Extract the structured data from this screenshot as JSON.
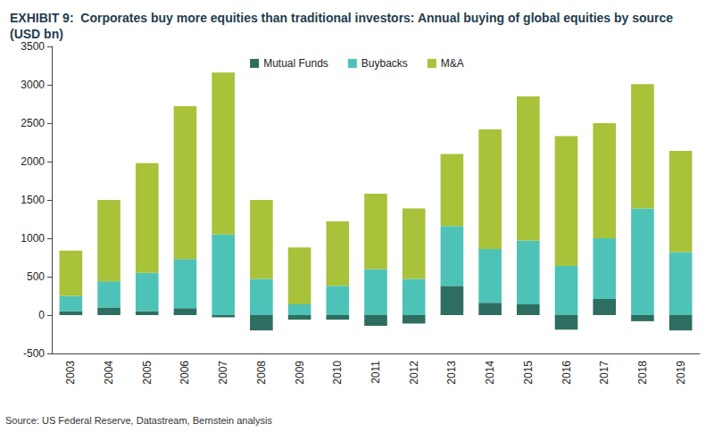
{
  "chart_data": {
    "type": "bar",
    "title": "EXHIBIT 9:  Corporates buy more equities than traditional investors: Annual buying of global equities by source (USD bn)",
    "annotations": [
      "Source: US Federal Reserve, Datastream, Bernstein analysis"
    ],
    "categories": [
      "2003",
      "2004",
      "2005",
      "2006",
      "2007",
      "2008",
      "2009",
      "2010",
      "2011",
      "2012",
      "2013",
      "2014",
      "2015",
      "2016",
      "2017",
      "2018",
      "2019"
    ],
    "series": [
      {
        "name": "Mutual Funds",
        "color": "#2d6e60",
        "values": [
          50,
          100,
          50,
          90,
          -30,
          -200,
          -60,
          -60,
          -140,
          -110,
          380,
          160,
          140,
          -190,
          210,
          -80,
          -200
        ]
      },
      {
        "name": "Buybacks",
        "color": "#4dc3b8",
        "values": [
          200,
          340,
          500,
          640,
          1050,
          470,
          140,
          380,
          600,
          470,
          780,
          700,
          830,
          640,
          790,
          1390,
          820
        ]
      },
      {
        "name": "M&A",
        "color": "#a8c23a",
        "values": [
          590,
          1060,
          1430,
          1990,
          2110,
          1030,
          740,
          840,
          980,
          920,
          940,
          1560,
          1880,
          1690,
          1500,
          1620,
          1320
        ]
      }
    ],
    "ylim": [
      -500,
      3500
    ],
    "yticks": [
      -500,
      0,
      500,
      1000,
      1500,
      2000,
      2500,
      3000,
      3500
    ],
    "stacked": true,
    "grid": false,
    "legend": "top"
  }
}
